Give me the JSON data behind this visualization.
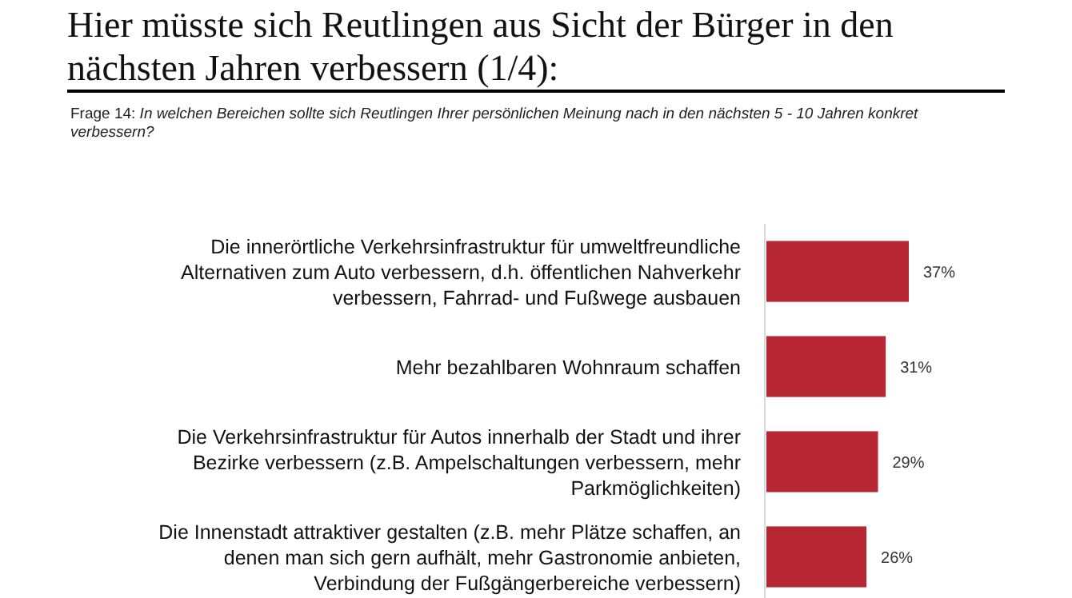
{
  "chart_data": {
    "type": "bar",
    "orientation": "horizontal",
    "title": "Hier müsste sich Reutlingen aus Sicht der Bürger in den nächsten Jahren verbessern (1/4):",
    "subtitle": "Frage 14: In welchen Bereichen sollte sich Reutlingen Ihrer persönlichen Meinung nach in den nächsten 5 - 10 Jahren konkret verbessern?",
    "categories": [
      "Die innerörtliche Verkehrsinfrastruktur für umweltfreundliche Alternativen zum Auto verbessern, d.h. öffentlichen Nahverkehr verbessern, Fahrrad- und Fußwege ausbauen",
      "Mehr bezahlbaren Wohnraum schaffen",
      "Die Verkehrsinfrastruktur für Autos innerhalb der Stadt und ihrer Bezirke verbessern (z.B. Ampelschaltungen verbessern, mehr Parkmöglichkeiten)",
      "Die Innenstadt attraktiver gestalten (z.B. mehr Plätze schaffen, an denen man sich gern aufhält, mehr Gastronomie anbieten, Verbindung der Fußgängerbereiche verbessern)"
    ],
    "values": [
      37,
      31,
      29,
      26
    ],
    "value_labels": [
      "37%",
      "31%",
      "29%",
      "26%"
    ],
    "color": "#b72633"
  }
}
